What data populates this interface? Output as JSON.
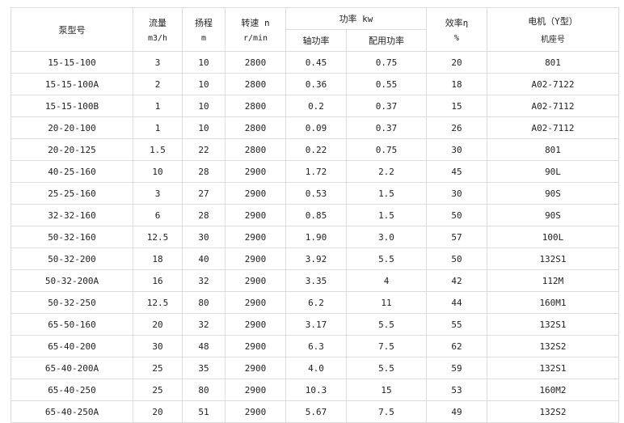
{
  "headers": {
    "model": "泵型号",
    "flow": "流量",
    "flow_unit": "m3/h",
    "head": "扬程",
    "head_unit": "m",
    "speed": "转速 n",
    "speed_unit": "r/min",
    "power": "功率 kw",
    "shaft_power": "轴功率",
    "matched_power": "配用功率",
    "efficiency": "效率η",
    "efficiency_unit": "%",
    "motor": "电机（Y型）",
    "motor_sub": "机座号"
  },
  "rows": [
    [
      "15-15-100",
      "3",
      "10",
      "2800",
      "0.45",
      "0.75",
      "20",
      "801"
    ],
    [
      "15-15-100A",
      "2",
      "10",
      "2800",
      "0.36",
      "0.55",
      "18",
      "A02-7122"
    ],
    [
      "15-15-100B",
      "1",
      "10",
      "2800",
      "0.2",
      "0.37",
      "15",
      "A02-7112"
    ],
    [
      "20-20-100",
      "1",
      "10",
      "2800",
      "0.09",
      "0.37",
      "26",
      "A02-7112"
    ],
    [
      "20-20-125",
      "1.5",
      "22",
      "2800",
      "0.22",
      "0.75",
      "30",
      "801"
    ],
    [
      "40-25-160",
      "10",
      "28",
      "2900",
      "1.72",
      "2.2",
      "45",
      "90L"
    ],
    [
      "25-25-160",
      "3",
      "27",
      "2900",
      "0.53",
      "1.5",
      "30",
      "90S"
    ],
    [
      "32-32-160",
      "6",
      "28",
      "2900",
      "0.85",
      "1.5",
      "50",
      "90S"
    ],
    [
      "50-32-160",
      "12.5",
      "30",
      "2900",
      "1.90",
      "3.0",
      "57",
      "100L"
    ],
    [
      "50-32-200",
      "18",
      "40",
      "2900",
      "3.92",
      "5.5",
      "50",
      "132S1"
    ],
    [
      "50-32-200A",
      "16",
      "32",
      "2900",
      "3.35",
      "4",
      "42",
      "112M"
    ],
    [
      "50-32-250",
      "12.5",
      "80",
      "2900",
      "6.2",
      "11",
      "44",
      "160M1"
    ],
    [
      "65-50-160",
      "20",
      "32",
      "2900",
      "3.17",
      "5.5",
      "55",
      "132S1"
    ],
    [
      "65-40-200",
      "30",
      "48",
      "2900",
      "6.3",
      "7.5",
      "62",
      "132S2"
    ],
    [
      "65-40-200A",
      "25",
      "35",
      "2900",
      "4.0",
      "5.5",
      "59",
      "132S1"
    ],
    [
      "65-40-250",
      "25",
      "80",
      "2900",
      "10.3",
      "15",
      "53",
      "160M2"
    ],
    [
      "65-40-250A",
      "20",
      "51",
      "2900",
      "5.67",
      "7.5",
      "49",
      "132S2"
    ]
  ]
}
